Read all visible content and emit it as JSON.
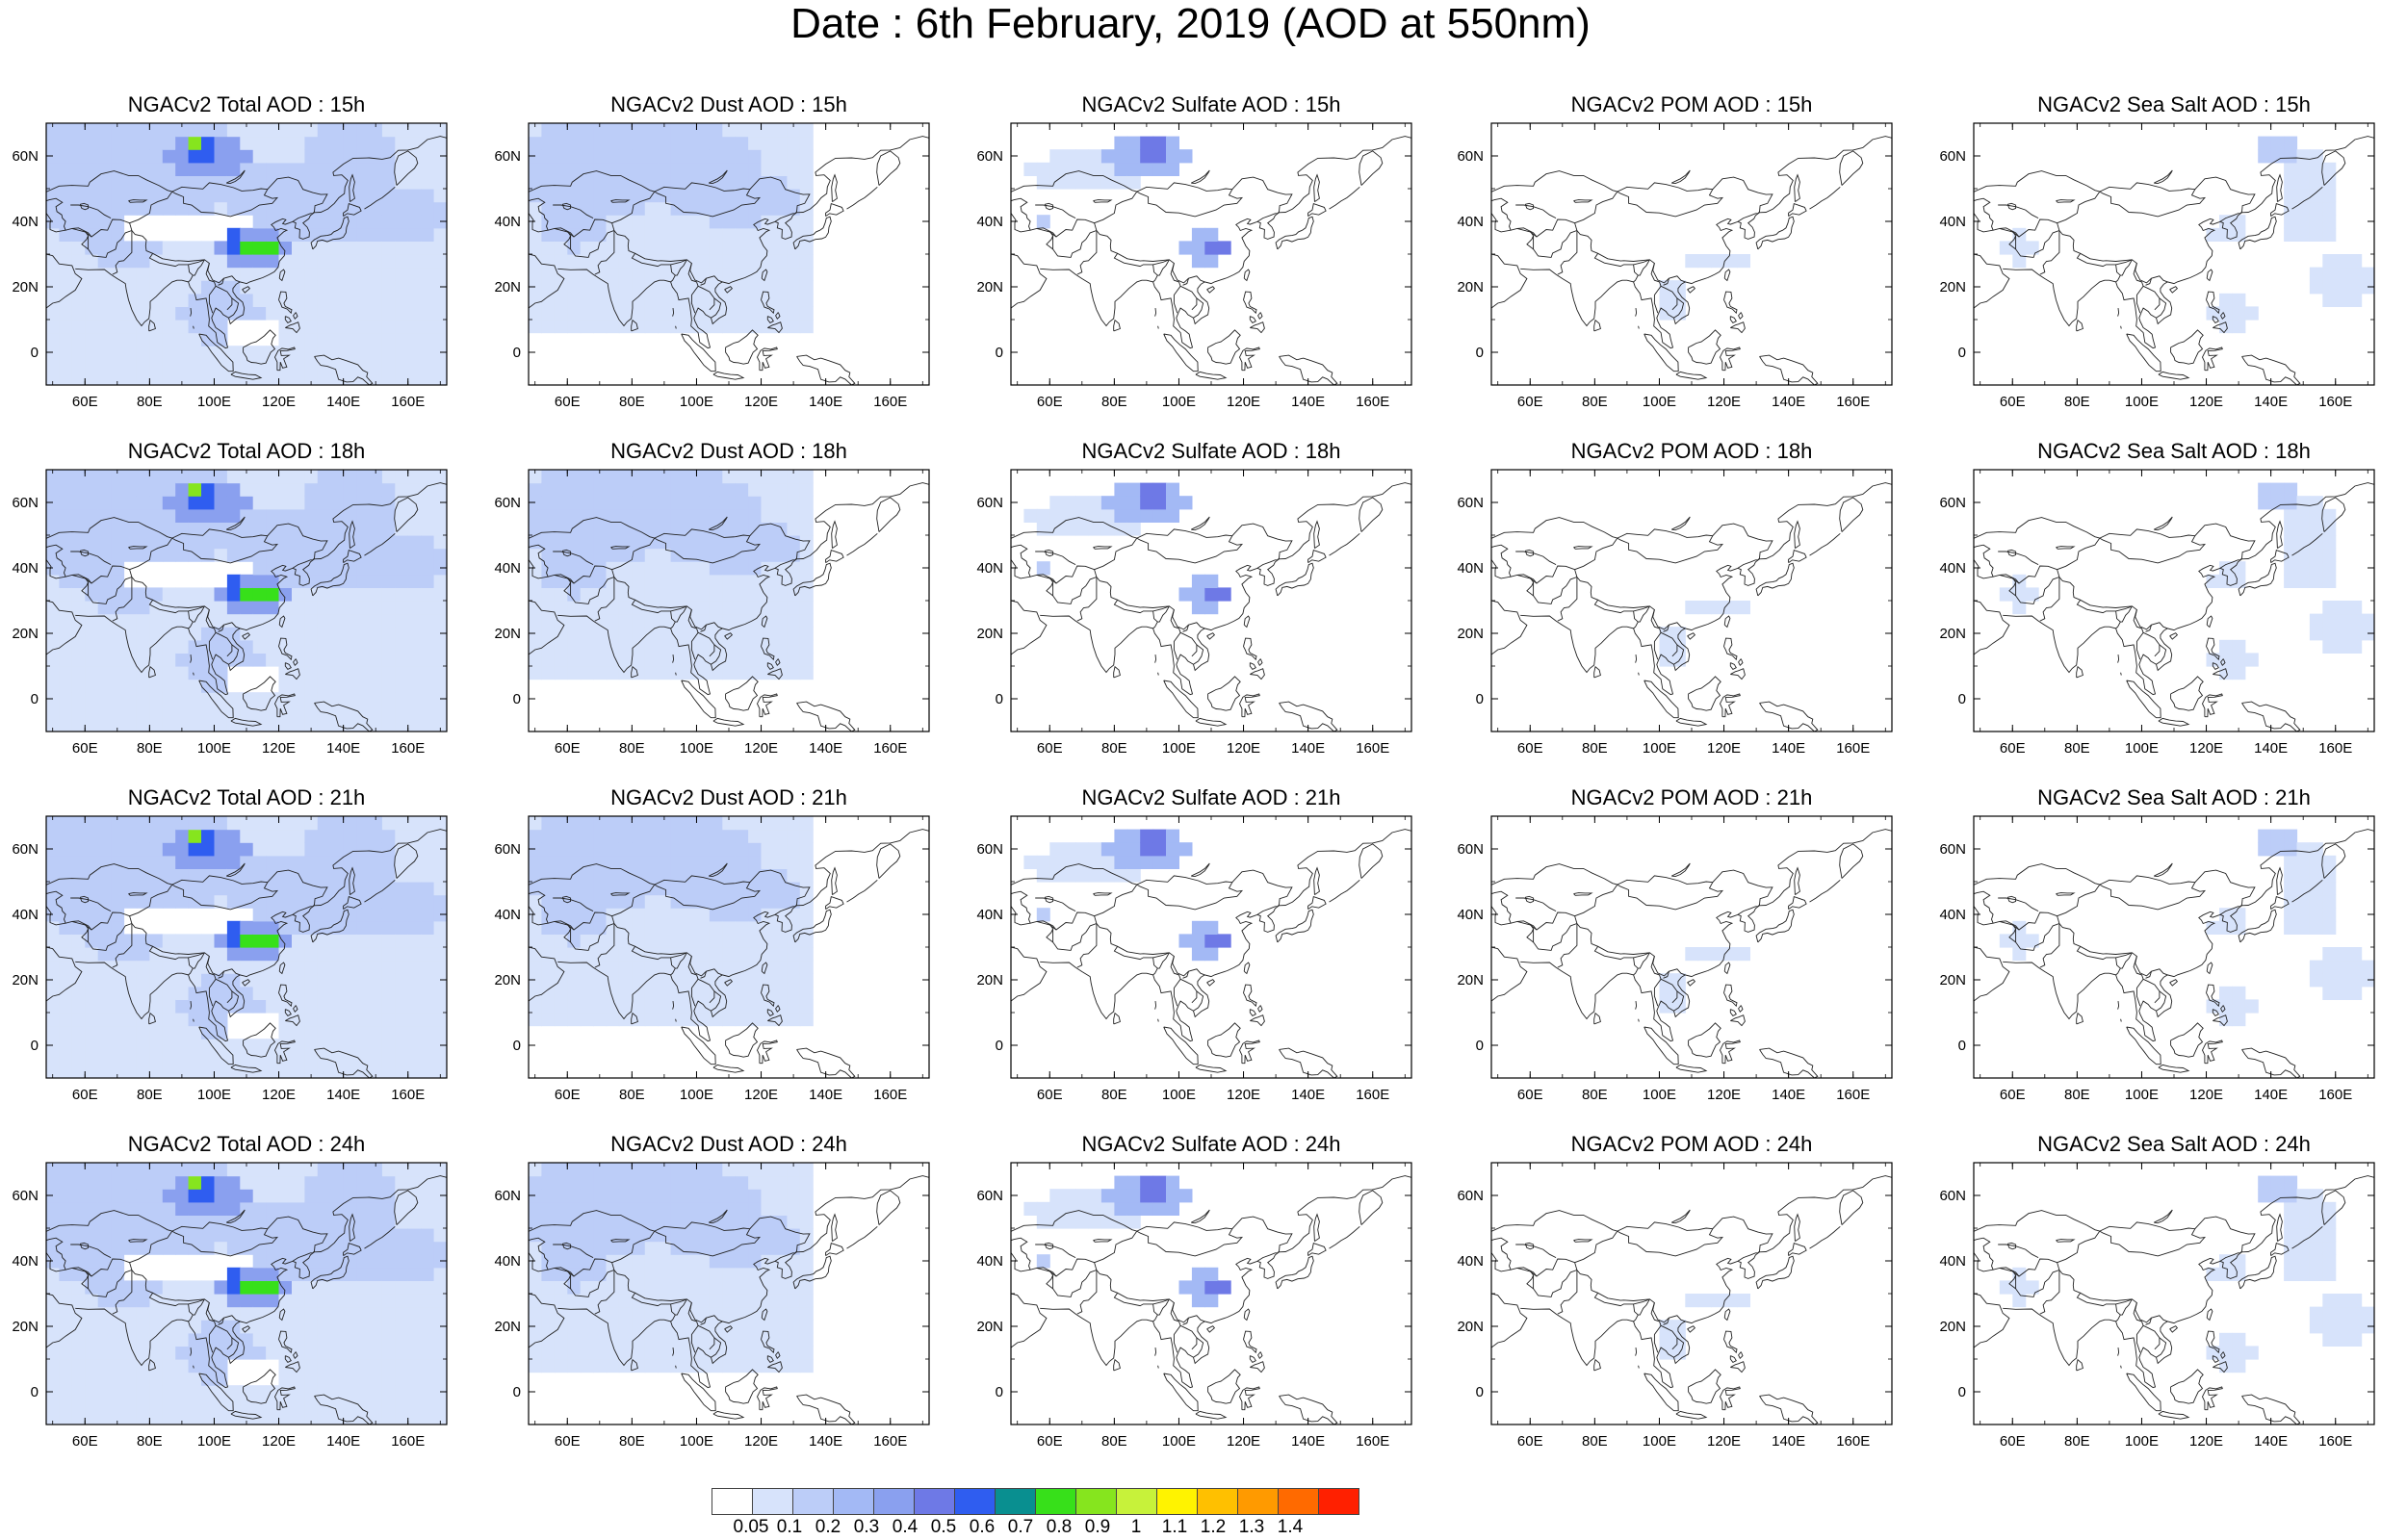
{
  "main_title": "Date : 6th February, 2019 (AOD at 550nm)",
  "panels": [
    {
      "title": "NGACv2 Total AOD : 15h",
      "field": "total"
    },
    {
      "title": "NGACv2 Dust AOD : 15h",
      "field": "dust"
    },
    {
      "title": "NGACv2 Sulfate AOD : 15h",
      "field": "sulfate"
    },
    {
      "title": "NGACv2 POM AOD : 15h",
      "field": "pom"
    },
    {
      "title": "NGACv2 Sea Salt AOD : 15h",
      "field": "seasalt"
    },
    {
      "title": "NGACv2 Total AOD : 18h",
      "field": "total"
    },
    {
      "title": "NGACv2 Dust AOD : 18h",
      "field": "dust"
    },
    {
      "title": "NGACv2 Sulfate AOD : 18h",
      "field": "sulfate"
    },
    {
      "title": "NGACv2 POM AOD : 18h",
      "field": "pom"
    },
    {
      "title": "NGACv2 Sea Salt AOD : 18h",
      "field": "seasalt"
    },
    {
      "title": "NGACv2 Total AOD : 21h",
      "field": "total"
    },
    {
      "title": "NGACv2 Dust AOD : 21h",
      "field": "dust"
    },
    {
      "title": "NGACv2 Sulfate AOD : 21h",
      "field": "sulfate"
    },
    {
      "title": "NGACv2 POM AOD : 21h",
      "field": "pom"
    },
    {
      "title": "NGACv2 Sea Salt AOD : 21h",
      "field": "seasalt"
    },
    {
      "title": "NGACv2 Total AOD : 24h",
      "field": "total"
    },
    {
      "title": "NGACv2 Dust AOD : 24h",
      "field": "dust"
    },
    {
      "title": "NGACv2 Sulfate AOD : 24h",
      "field": "sulfate"
    },
    {
      "title": "NGACv2 POM AOD : 24h",
      "field": "pom"
    },
    {
      "title": "NGACv2 Sea Salt  AOD : 24h",
      "field": "seasalt"
    }
  ],
  "lat_ticks": [
    "60N",
    "40N",
    "20N",
    "0"
  ],
  "lat_values": [
    60,
    40,
    20,
    0
  ],
  "lon_ticks": [
    "60E",
    "80E",
    "100E",
    "120E",
    "140E",
    "160E"
  ],
  "lon_values": [
    60,
    80,
    100,
    120,
    140,
    160
  ],
  "map_extent": {
    "lon": [
      48,
      172
    ],
    "lat": [
      -10,
      70
    ]
  },
  "colorbar": {
    "labels": [
      "0.05",
      "0.1",
      "0.2",
      "0.3",
      "0.4",
      "0.5",
      "0.6",
      "0.7",
      "0.8",
      "0.9",
      "1",
      "1.1",
      "1.2",
      "1.3",
      "1.4"
    ],
    "colors": [
      "#ffffff",
      "#d7e3fb",
      "#bccdf8",
      "#a3b9f5",
      "#8aa0ef",
      "#6e79e6",
      "#2f5df0",
      "#098f90",
      "#37e01a",
      "#86e51e",
      "#c7f23a",
      "#fff300",
      "#ffc000",
      "#ff9a00",
      "#ff6a00",
      "#ff2000"
    ]
  },
  "colors": {
    "coast": "#222222",
    "frame": "#000000"
  }
}
